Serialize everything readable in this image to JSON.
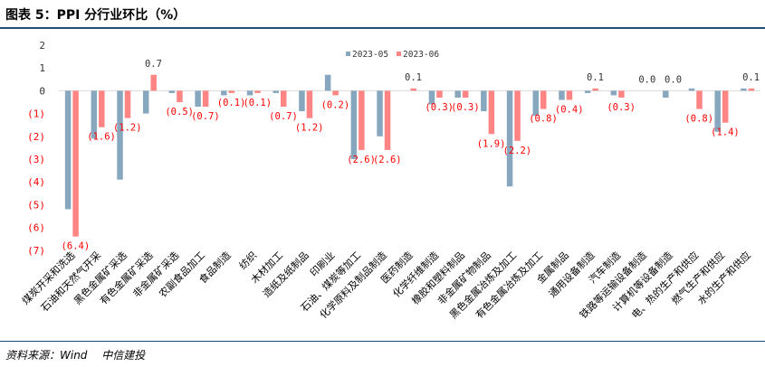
{
  "title": "图表 5：PPI 分行业环比（%）",
  "source": "资料来源：Wind　 中信建投",
  "colors": {
    "s1": "#87a7be",
    "s2": "#ff8585",
    "neg_label": "#ff0000",
    "pos_label": "#333333"
  },
  "chart_data": {
    "type": "bar",
    "title": "PPI 分行业环比（%）",
    "xlabel": "",
    "ylabel": "",
    "ylim": [
      -7,
      2
    ],
    "yticks": [
      2,
      1,
      0,
      -1,
      -2,
      -3,
      -4,
      -5,
      -6,
      -7
    ],
    "ytick_labels": [
      "2",
      "1",
      "0",
      "(1)",
      "(2)",
      "(3)",
      "(4)",
      "(5)",
      "(6)",
      "(7)"
    ],
    "legend_position": "top-right",
    "categories": [
      "煤炭开采和洗选",
      "石油和天然气开采",
      "黑色金属矿采选",
      "有色金属矿采选",
      "非金属矿采选",
      "农副食品加工",
      "食品制造",
      "纺织",
      "木材加工",
      "造纸及纸制品",
      "印刷业",
      "石油、煤炭等加工",
      "化学原料及制品制造",
      "医药制造",
      "化学纤维制造",
      "橡胶和塑料制品",
      "非金属矿物制品",
      "黑色金属冶炼及加工",
      "有色金属冶炼及加工",
      "金属制品",
      "通用设备制造",
      "汽车制造",
      "铁路等运输设备制造",
      "计算机等设备制造",
      "电、热的生产和供应",
      "燃气生产和供应",
      "水的生产和供应"
    ],
    "series": [
      {
        "name": "2023-05",
        "values": [
          -5.2,
          -2.1,
          -3.9,
          -1.0,
          -0.1,
          -0.7,
          -0.2,
          -0.2,
          -0.1,
          -0.9,
          0.7,
          -3.0,
          -2.0,
          0.0,
          -0.6,
          -0.3,
          -0.9,
          -4.2,
          -1.1,
          -0.4,
          -0.1,
          -0.2,
          0.0,
          -0.3,
          0.1,
          -1.8,
          0.1
        ]
      },
      {
        "name": "2023-06",
        "values": [
          -6.4,
          -1.6,
          -1.2,
          0.7,
          -0.5,
          -0.7,
          -0.1,
          -0.1,
          -0.7,
          -1.2,
          -0.2,
          -2.6,
          -2.6,
          0.1,
          -0.3,
          -0.3,
          -1.9,
          -2.2,
          -0.8,
          -0.4,
          0.1,
          -0.3,
          0.0,
          0.0,
          -0.8,
          -1.4,
          0.1
        ],
        "data_labels": [
          "(6.4)",
          "(1.6)",
          "(1.2)",
          "0.7",
          "(0.5)",
          "(0.7)",
          "(0.1)",
          "(0.1)",
          "(0.7)",
          "(1.2)",
          "(0.2)",
          "(2.6)",
          "(2.6)",
          "0.1",
          "(0.3)",
          "(0.3)",
          "(1.9)",
          "(2.2)",
          "(0.8)",
          "(0.4)",
          "0.1",
          "(0.3)",
          "0.0",
          "0.0",
          "(0.8)",
          "(1.4)",
          "0.1"
        ]
      }
    ]
  }
}
